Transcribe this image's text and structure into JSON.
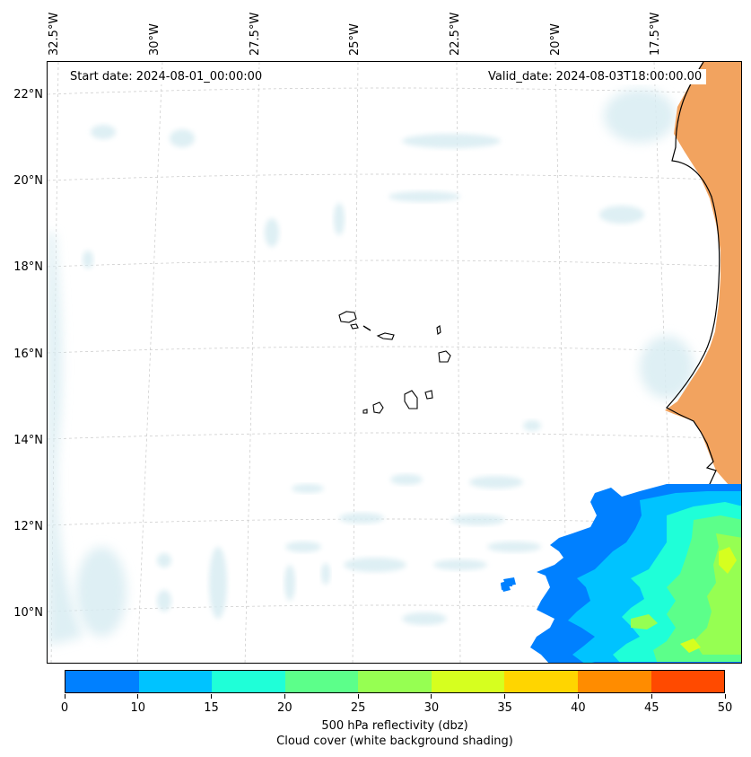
{
  "map": {
    "start_date": "Start date: 2024-08-01_00:00:00",
    "valid_date": "Valid_date: 2024-08-03T18:00:00.00",
    "lon_labels": [
      "32.5°W",
      "30°W",
      "27.5°W",
      "25°W",
      "22.5°W",
      "20°W",
      "17.5°W"
    ],
    "lat_labels": [
      "22°N",
      "20°N",
      "18°N",
      "16°N",
      "14°N",
      "12°N",
      "10°N"
    ],
    "land_color": "#f2a35f",
    "cloud_color": "#d8ecf2"
  },
  "colorbar": {
    "ticks": [
      "0",
      "10",
      "15",
      "20",
      "25",
      "30",
      "35",
      "40",
      "45",
      "50"
    ],
    "colors": [
      "#0080ff",
      "#00c3ff",
      "#1fffd8",
      "#5cff8a",
      "#96ff52",
      "#d6ff1f",
      "#ffd500",
      "#ff8c00",
      "#ff4a00"
    ],
    "label_line1": "500 hPa reflectivity (dbz)",
    "label_line2": "Cloud cover (white background shading)"
  }
}
